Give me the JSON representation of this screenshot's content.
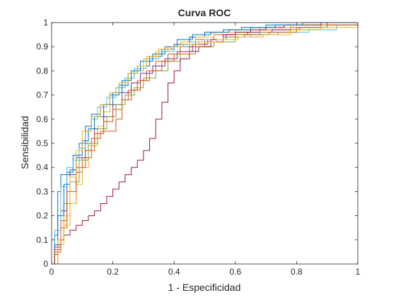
{
  "chart_data": {
    "type": "line",
    "title": "Curva ROC",
    "xlabel": "1 - Especificidad",
    "ylabel": "Sensibilidad",
    "xlim": [
      0,
      1
    ],
    "ylim": [
      0,
      1
    ],
    "xticks": [
      0,
      0.2,
      0.4,
      0.6,
      0.8,
      1
    ],
    "xtick_labels": [
      "0",
      "0.2",
      "0.4",
      "0.6",
      "0.8",
      "1"
    ],
    "yticks": [
      0,
      0.1,
      0.2,
      0.3,
      0.4,
      0.5,
      0.6,
      0.7,
      0.8,
      0.9,
      1
    ],
    "ytick_labels": [
      "0",
      "0.1",
      "0.2",
      "0.3",
      "0.4",
      "0.5",
      "0.6",
      "0.7",
      "0.8",
      "0.9",
      "1"
    ],
    "grid": false,
    "step": true,
    "series": [
      {
        "color": "#0072BD",
        "x": [
          0,
          0.01,
          0.02,
          0.03,
          0.05,
          0.07,
          0.09,
          0.11,
          0.13,
          0.16,
          0.19,
          0.22,
          0.25,
          0.28,
          0.32,
          0.36,
          0.4,
          0.45,
          0.5,
          0.56,
          0.62,
          0.7,
          0.8,
          0.9,
          1
        ],
        "y": [
          0,
          0.12,
          0.3,
          0.37,
          0.38,
          0.45,
          0.5,
          0.57,
          0.62,
          0.66,
          0.7,
          0.74,
          0.79,
          0.82,
          0.86,
          0.89,
          0.91,
          0.94,
          0.96,
          0.97,
          0.98,
          0.99,
          0.99,
          1,
          1
        ]
      },
      {
        "color": "#D95319",
        "x": [
          0,
          0.01,
          0.03,
          0.05,
          0.08,
          0.1,
          0.13,
          0.16,
          0.19,
          0.21,
          0.23,
          0.25,
          0.28,
          0.31,
          0.34,
          0.38,
          0.42,
          0.47,
          0.53,
          0.6,
          0.68,
          0.78,
          0.88,
          1
        ],
        "y": [
          0,
          0.05,
          0.15,
          0.25,
          0.38,
          0.44,
          0.52,
          0.55,
          0.55,
          0.6,
          0.68,
          0.72,
          0.76,
          0.8,
          0.84,
          0.87,
          0.9,
          0.93,
          0.95,
          0.96,
          0.97,
          0.98,
          0.99,
          1
        ]
      },
      {
        "color": "#EDB120",
        "x": [
          0,
          0.02,
          0.04,
          0.06,
          0.08,
          0.1,
          0.12,
          0.15,
          0.17,
          0.19,
          0.21,
          0.24,
          0.27,
          0.3,
          0.34,
          0.38,
          0.42,
          0.47,
          0.53,
          0.6,
          0.68,
          0.78,
          0.88,
          1
        ],
        "y": [
          0,
          0.08,
          0.16,
          0.25,
          0.33,
          0.4,
          0.49,
          0.57,
          0.63,
          0.69,
          0.73,
          0.77,
          0.8,
          0.85,
          0.88,
          0.9,
          0.92,
          0.94,
          0.96,
          0.97,
          0.98,
          0.99,
          0.99,
          1
        ]
      },
      {
        "color": "#7E2F8E",
        "x": [
          0,
          0.01,
          0.03,
          0.05,
          0.08,
          0.11,
          0.14,
          0.17,
          0.2,
          0.23,
          0.26,
          0.29,
          0.33,
          0.37,
          0.41,
          0.46,
          0.51,
          0.57,
          0.64,
          0.72,
          0.81,
          0.9,
          1
        ],
        "y": [
          0,
          0.07,
          0.22,
          0.37,
          0.44,
          0.5,
          0.56,
          0.61,
          0.66,
          0.71,
          0.75,
          0.79,
          0.82,
          0.85,
          0.88,
          0.91,
          0.93,
          0.95,
          0.96,
          0.97,
          0.98,
          0.99,
          1
        ]
      },
      {
        "color": "#77AC30",
        "x": [
          0,
          0.02,
          0.04,
          0.06,
          0.09,
          0.12,
          0.15,
          0.18,
          0.21,
          0.24,
          0.27,
          0.3,
          0.34,
          0.38,
          0.42,
          0.47,
          0.53,
          0.6,
          0.68,
          0.78,
          0.88,
          1
        ],
        "y": [
          0,
          0.1,
          0.25,
          0.34,
          0.43,
          0.5,
          0.56,
          0.61,
          0.66,
          0.7,
          0.73,
          0.77,
          0.8,
          0.84,
          0.87,
          0.9,
          0.92,
          0.95,
          0.96,
          0.97,
          0.99,
          1
        ]
      },
      {
        "color": "#4DBEEE",
        "x": [
          0,
          0.01,
          0.03,
          0.05,
          0.07,
          0.09,
          0.11,
          0.13,
          0.15,
          0.18,
          0.21,
          0.24,
          0.27,
          0.31,
          0.35,
          0.4,
          0.45,
          0.5,
          0.57,
          0.65,
          0.74,
          0.84,
          0.93,
          1
        ],
        "y": [
          0,
          0.14,
          0.32,
          0.4,
          0.43,
          0.48,
          0.55,
          0.6,
          0.65,
          0.69,
          0.73,
          0.77,
          0.81,
          0.85,
          0.88,
          0.9,
          0.92,
          0.93,
          0.94,
          0.95,
          0.96,
          0.97,
          0.99,
          1
        ]
      },
      {
        "color": "#A2142F",
        "x": [
          0,
          0.01,
          0.02,
          0.03,
          0.04,
          0.06,
          0.08,
          0.1,
          0.12,
          0.14,
          0.16,
          0.18,
          0.2,
          0.22,
          0.24,
          0.26,
          0.28,
          0.3,
          0.32,
          0.34,
          0.36,
          0.38,
          0.4,
          0.42,
          0.45,
          0.48,
          0.52,
          0.56,
          0.6,
          0.65,
          0.7,
          0.76,
          0.82,
          0.88,
          0.94,
          1
        ],
        "y": [
          0,
          0.04,
          0.08,
          0.1,
          0.12,
          0.14,
          0.16,
          0.18,
          0.2,
          0.22,
          0.25,
          0.28,
          0.31,
          0.34,
          0.37,
          0.4,
          0.43,
          0.47,
          0.52,
          0.6,
          0.67,
          0.75,
          0.8,
          0.85,
          0.88,
          0.9,
          0.93,
          0.95,
          0.96,
          0.97,
          0.98,
          0.99,
          0.99,
          1,
          1,
          1
        ]
      },
      {
        "color": "#0072BD",
        "x": [
          0,
          0.01,
          0.02,
          0.04,
          0.06,
          0.08,
          0.1,
          0.12,
          0.14,
          0.17,
          0.2,
          0.23,
          0.26,
          0.29,
          0.33,
          0.37,
          0.41,
          0.46,
          0.52,
          0.58,
          0.65,
          0.73,
          0.82,
          0.91,
          1
        ],
        "y": [
          0,
          0.08,
          0.2,
          0.33,
          0.39,
          0.45,
          0.51,
          0.56,
          0.61,
          0.66,
          0.71,
          0.76,
          0.8,
          0.84,
          0.87,
          0.9,
          0.93,
          0.95,
          0.96,
          0.97,
          0.98,
          0.99,
          1,
          1,
          1
        ]
      },
      {
        "color": "#D95319",
        "x": [
          0,
          0.01,
          0.03,
          0.05,
          0.08,
          0.11,
          0.14,
          0.17,
          0.2,
          0.23,
          0.26,
          0.29,
          0.32,
          0.36,
          0.4,
          0.45,
          0.5,
          0.56,
          0.63,
          0.71,
          0.8,
          0.9,
          1
        ],
        "y": [
          0,
          0.06,
          0.18,
          0.3,
          0.4,
          0.47,
          0.54,
          0.59,
          0.64,
          0.68,
          0.72,
          0.76,
          0.8,
          0.84,
          0.87,
          0.9,
          0.92,
          0.94,
          0.95,
          0.96,
          0.98,
          0.99,
          1
        ]
      },
      {
        "color": "#EDB120",
        "x": [
          0,
          0.02,
          0.04,
          0.06,
          0.08,
          0.1,
          0.13,
          0.16,
          0.19,
          0.22,
          0.25,
          0.28,
          0.31,
          0.35,
          0.39,
          0.43,
          0.48,
          0.54,
          0.61,
          0.69,
          0.78,
          0.88,
          1
        ],
        "y": [
          0,
          0.1,
          0.2,
          0.36,
          0.47,
          0.55,
          0.61,
          0.66,
          0.71,
          0.75,
          0.79,
          0.82,
          0.86,
          0.89,
          0.9,
          0.91,
          0.92,
          0.93,
          0.94,
          0.95,
          0.97,
          0.98,
          1
        ]
      }
    ]
  }
}
